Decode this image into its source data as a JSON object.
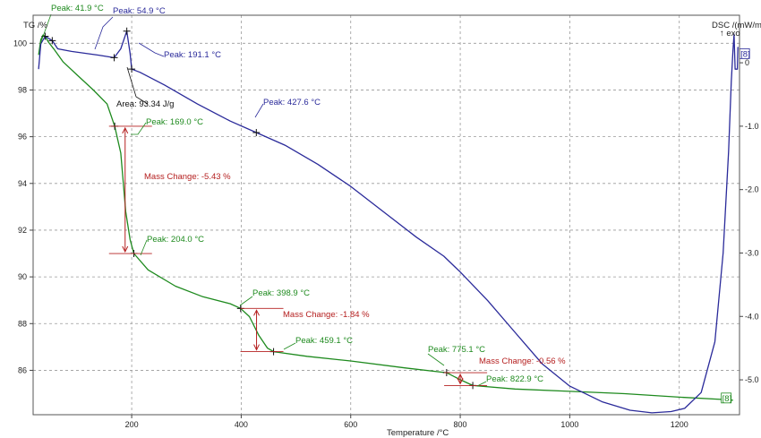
{
  "chart_data": {
    "type": "line",
    "ylabel_left": "TG /%",
    "ylabel_right": "DSC /(mW/mg)",
    "exo_label": "↑ exo",
    "xlabel": "Temperature /°C",
    "xlim": [
      20,
      1310
    ],
    "ylim_left": [
      84.1,
      101.2
    ],
    "ylim_right": [
      -5.55,
      0.75
    ],
    "x_ticks": [
      200,
      400,
      600,
      800,
      1000,
      1200
    ],
    "y_ticks_left": [
      86,
      88,
      90,
      92,
      94,
      96,
      98,
      100
    ],
    "y_ticks_right": [
      {
        "value": 0,
        "label": "0"
      },
      {
        "value": -1,
        "label": "-1.0"
      },
      {
        "value": -2,
        "label": "-2.0"
      },
      {
        "value": -3,
        "label": "-3.0"
      },
      {
        "value": -4,
        "label": "-4.0"
      },
      {
        "value": -5,
        "label": "-5.0"
      }
    ],
    "series": [
      {
        "axis": "left",
        "color": "#1e8a1e",
        "end_label": "[8]",
        "points": [
          [
            30,
            99.5
          ],
          [
            34,
            100.15
          ],
          [
            38,
            100.35
          ],
          [
            41.9,
            100.3
          ],
          [
            48,
            100.05
          ],
          [
            58,
            99.75
          ],
          [
            75,
            99.2
          ],
          [
            100,
            98.65
          ],
          [
            130,
            98.0
          ],
          [
            155,
            97.4
          ],
          [
            169,
            96.45
          ],
          [
            180,
            95.3
          ],
          [
            189,
            92.8
          ],
          [
            197,
            91.6
          ],
          [
            204,
            91.0
          ],
          [
            230,
            90.3
          ],
          [
            280,
            89.6
          ],
          [
            330,
            89.15
          ],
          [
            380,
            88.85
          ],
          [
            398.9,
            88.65
          ],
          [
            415,
            88.3
          ],
          [
            432,
            87.5
          ],
          [
            448,
            86.95
          ],
          [
            459.1,
            86.8
          ],
          [
            520,
            86.6
          ],
          [
            600,
            86.4
          ],
          [
            700,
            86.1
          ],
          [
            775.1,
            85.9
          ],
          [
            800,
            85.6
          ],
          [
            822.9,
            85.35
          ],
          [
            900,
            85.2
          ],
          [
            1000,
            85.1
          ],
          [
            1100,
            85.0
          ],
          [
            1200,
            84.85
          ],
          [
            1280,
            84.75
          ],
          [
            1298,
            84.72
          ]
        ]
      },
      {
        "axis": "right",
        "color": "#2a2a9a",
        "end_label": "[8]",
        "points": [
          [
            30,
            -0.1
          ],
          [
            34,
            0.3
          ],
          [
            42,
            0.42
          ],
          [
            54.9,
            0.35
          ],
          [
            65,
            0.22
          ],
          [
            90,
            0.18
          ],
          [
            140,
            0.12
          ],
          [
            168,
            0.08
          ],
          [
            180,
            0.22
          ],
          [
            191.1,
            0.5
          ],
          [
            197,
            0.15
          ],
          [
            200,
            -0.1
          ],
          [
            215,
            -0.15
          ],
          [
            260,
            -0.35
          ],
          [
            320,
            -0.65
          ],
          [
            380,
            -0.92
          ],
          [
            427.6,
            -1.1
          ],
          [
            480,
            -1.3
          ],
          [
            540,
            -1.6
          ],
          [
            600,
            -1.95
          ],
          [
            660,
            -2.35
          ],
          [
            720,
            -2.75
          ],
          [
            770,
            -3.05
          ],
          [
            800,
            -3.3
          ],
          [
            850,
            -3.75
          ],
          [
            900,
            -4.25
          ],
          [
            950,
            -4.75
          ],
          [
            1000,
            -5.1
          ],
          [
            1060,
            -5.35
          ],
          [
            1110,
            -5.48
          ],
          [
            1150,
            -5.52
          ],
          [
            1185,
            -5.5
          ],
          [
            1210,
            -5.45
          ],
          [
            1240,
            -5.2
          ],
          [
            1265,
            -4.4
          ],
          [
            1280,
            -3.0
          ],
          [
            1290,
            -1.4
          ],
          [
            1295,
            -0.3
          ],
          [
            1298,
            0.2
          ],
          [
            1300,
            0.45
          ],
          [
            1302,
            -0.1
          ],
          [
            1306,
            -0.1
          ],
          [
            1307,
            0.25
          ]
        ]
      }
    ],
    "annotations": [
      {
        "text": "Peak: 41.9 °C",
        "color": "#1e8a1e"
      },
      {
        "text": "Peak: 54.9 °C",
        "color": "#2a2a9a"
      },
      {
        "text": "Peak: 191.1 °C",
        "color": "#2a2a9a"
      },
      {
        "text": "Area: 93.34 J/g",
        "color": "#111111"
      },
      {
        "text": "Peak: 169.0 °C",
        "color": "#1e8a1e"
      },
      {
        "text": "Peak: 427.6 °C",
        "color": "#2a2a9a"
      },
      {
        "text": "Mass Change: -5.43 %",
        "color": "#b52020"
      },
      {
        "text": "Peak: 204.0 °C",
        "color": "#1e8a1e"
      },
      {
        "text": "Peak: 398.9 °C",
        "color": "#1e8a1e"
      },
      {
        "text": "Mass Change: -1.84 %",
        "color": "#b52020"
      },
      {
        "text": "Peak: 459.1 °C",
        "color": "#1e8a1e"
      },
      {
        "text": "Peak: 775.1 °C",
        "color": "#1e8a1e"
      },
      {
        "text": "Mass Change: -0.56 %",
        "color": "#b52020"
      },
      {
        "text": "Peak: 822.9 °C",
        "color": "#1e8a1e"
      }
    ],
    "peak_markers": [
      {
        "axis": "left",
        "x": 41.9,
        "y": 100.3
      },
      {
        "axis": "right",
        "x": 54.9,
        "y": 0.35
      },
      {
        "axis": "right",
        "x": 168,
        "y": 0.08
      },
      {
        "axis": "right",
        "x": 191.1,
        "y": 0.5
      },
      {
        "axis": "right",
        "x": 200,
        "y": -0.1
      },
      {
        "axis": "right",
        "x": 427.6,
        "y": -1.1
      },
      {
        "axis": "left",
        "x": 169,
        "y": 96.45
      },
      {
        "axis": "left",
        "x": 204,
        "y": 91.0
      },
      {
        "axis": "left",
        "x": 398.9,
        "y": 88.65
      },
      {
        "axis": "left",
        "x": 459.1,
        "y": 86.8
      },
      {
        "axis": "left",
        "x": 775.1,
        "y": 85.9
      },
      {
        "axis": "left",
        "x": 822.9,
        "y": 85.35
      }
    ],
    "mass_change_steps": [
      {
        "x": 188,
        "y_from": 96.45,
        "y_to": 91.0
      },
      {
        "x": 428,
        "y_from": 88.65,
        "y_to": 86.8
      },
      {
        "x": 800,
        "y_from": 85.9,
        "y_to": 85.35
      }
    ],
    "grid": true
  }
}
